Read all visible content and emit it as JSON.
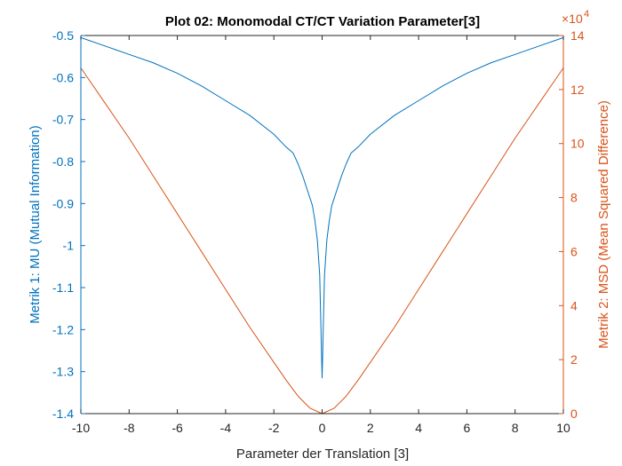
{
  "chart_data": {
    "type": "line",
    "title": "Plot 02: Monomodal CT/CT Variation Parameter[3]",
    "xlabel": "Parameter der Translation [3]",
    "ylabel_left": "Metrik 1: MU (Mutual Information)",
    "ylabel_right": "Metrik 2: MSD (Mean Squared Difference)",
    "right_exponent": "×10",
    "right_exponent_power": "4",
    "xlim": [
      -10,
      10
    ],
    "ylim_left": [
      -1.4,
      -0.5
    ],
    "ylim_right": [
      0,
      140000
    ],
    "x_ticks": [
      -10,
      -8,
      -6,
      -4,
      -2,
      0,
      2,
      4,
      6,
      8,
      10
    ],
    "x_tick_labels": [
      "-10",
      "-8",
      "-6",
      "-4",
      "-2",
      "0",
      "2",
      "4",
      "6",
      "8",
      "10"
    ],
    "y_left_ticks": [
      -1.4,
      -1.3,
      -1.2,
      -1.1,
      -1.0,
      -0.9,
      -0.8,
      -0.7,
      -0.6,
      -0.5
    ],
    "y_left_tick_labels": [
      "-1.4",
      "-1.3",
      "-1.2",
      "-1.1",
      "-1",
      "-0.9",
      "-0.8",
      "-0.7",
      "-0.6",
      "-0.5"
    ],
    "y_right_ticks": [
      0,
      20000,
      40000,
      60000,
      80000,
      100000,
      120000,
      140000
    ],
    "y_right_tick_labels": [
      "0",
      "2",
      "4",
      "6",
      "8",
      "10",
      "12",
      "14"
    ],
    "grid": false,
    "colors": {
      "left": "#0072bd",
      "right": "#d95319",
      "axis": "#262626"
    },
    "series": [
      {
        "axis": "left",
        "x": [
          -10,
          -9,
          -8,
          -7,
          -6,
          -5,
          -4,
          -3,
          -2,
          -1.5,
          -1.2,
          -1,
          -0.8,
          -0.6,
          -0.4,
          -0.3,
          -0.2,
          -0.1,
          0,
          0.1,
          0.2,
          0.3,
          0.4,
          0.6,
          0.8,
          1,
          1.2,
          1.5,
          2,
          3,
          4,
          5,
          6,
          7,
          8,
          9,
          10
        ],
        "values": [
          -0.505,
          -0.525,
          -0.545,
          -0.565,
          -0.59,
          -0.62,
          -0.655,
          -0.69,
          -0.735,
          -0.765,
          -0.78,
          -0.805,
          -0.835,
          -0.87,
          -0.905,
          -0.94,
          -0.985,
          -1.07,
          -1.315,
          -1.07,
          -0.985,
          -0.94,
          -0.905,
          -0.87,
          -0.835,
          -0.805,
          -0.78,
          -0.765,
          -0.735,
          -0.69,
          -0.655,
          -0.62,
          -0.59,
          -0.565,
          -0.545,
          -0.525,
          -0.505
        ]
      },
      {
        "axis": "right",
        "x": [
          -10,
          -9,
          -8,
          -7,
          -6,
          -5,
          -4,
          -3,
          -2,
          -1.5,
          -1,
          -0.5,
          0,
          0.5,
          1,
          1.5,
          2,
          3,
          4,
          5,
          6,
          7,
          8,
          9,
          10
        ],
        "values": [
          128000,
          115000,
          102000,
          88000,
          74000,
          60000,
          46000,
          32000,
          19000,
          12500,
          6500,
          2000,
          0,
          2000,
          6500,
          12500,
          19000,
          32000,
          46000,
          60000,
          74000,
          88000,
          102000,
          115000,
          128000
        ]
      }
    ]
  }
}
